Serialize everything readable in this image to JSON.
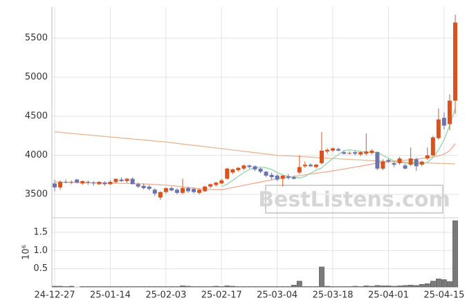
{
  "chart_data": [
    {
      "type": "candlestick",
      "x": [
        "24-12-27",
        null,
        null,
        null,
        null,
        null,
        null,
        null,
        null,
        null,
        "25-01-14",
        null,
        null,
        null,
        null,
        null,
        null,
        null,
        null,
        null,
        "25-02-03",
        null,
        null,
        null,
        null,
        null,
        null,
        null,
        null,
        null,
        "25-02-17",
        null,
        null,
        null,
        null,
        null,
        null,
        null,
        null,
        null,
        "25-03-04",
        null,
        null,
        null,
        null,
        null,
        null,
        null,
        null,
        null,
        "25-03-18",
        null,
        null,
        null,
        null,
        null,
        null,
        null,
        null,
        null,
        "25-04-01",
        null,
        null,
        null,
        null,
        null,
        null,
        null,
        null,
        null,
        "25-04-15",
        null,
        null
      ],
      "open": [
        3640,
        3590,
        3660,
        3650,
        3690,
        3640,
        3660,
        3650,
        3630,
        3650,
        3630,
        3660,
        3690,
        3670,
        3700,
        3630,
        3610,
        3600,
        3560,
        3460,
        3530,
        3580,
        3560,
        3520,
        3580,
        3570,
        3520,
        3540,
        3600,
        3620,
        3640,
        3700,
        3780,
        3810,
        3830,
        3870,
        3860,
        3830,
        3790,
        3750,
        3740,
        3700,
        3730,
        3720,
        3780,
        3860,
        3880,
        3850,
        3900,
        4050,
        4060,
        4080,
        4040,
        4030,
        4040,
        4010,
        4020,
        4030,
        4040,
        3830,
        3940,
        3900,
        3900,
        3870,
        3880,
        3950,
        3880,
        3960,
        4000,
        4220,
        4480,
        4400,
        4700
      ],
      "high": [
        3690,
        3680,
        3690,
        3680,
        3700,
        3680,
        3680,
        3670,
        3670,
        3670,
        3680,
        3700,
        3720,
        3710,
        3720,
        3650,
        3640,
        3620,
        3580,
        3540,
        3590,
        3600,
        3580,
        3700,
        3600,
        3590,
        3570,
        3610,
        3640,
        3660,
        3700,
        3840,
        3830,
        3850,
        3880,
        3880,
        3870,
        3840,
        3800,
        3780,
        3760,
        3750,
        3760,
        3740,
        4000,
        3920,
        3900,
        3890,
        4300,
        4090,
        4100,
        4100,
        4060,
        4050,
        4060,
        4050,
        4280,
        4080,
        4050,
        3950,
        3960,
        3920,
        3980,
        3890,
        4100,
        3970,
        3930,
        4100,
        4250,
        4600,
        4550,
        4780,
        5800
      ],
      "low": [
        3540,
        3560,
        3640,
        3630,
        3640,
        3620,
        3620,
        3610,
        3620,
        3610,
        3620,
        3640,
        3660,
        3650,
        3650,
        3580,
        3560,
        3550,
        3480,
        3430,
        3510,
        3540,
        3500,
        3500,
        3520,
        3510,
        3500,
        3530,
        3580,
        3600,
        3630,
        3690,
        3760,
        3790,
        3810,
        3830,
        3800,
        3770,
        3720,
        3690,
        3670,
        3600,
        3690,
        3690,
        3760,
        3840,
        3850,
        3830,
        3880,
        4020,
        4040,
        4050,
        4010,
        4010,
        4000,
        3990,
        4000,
        4010,
        3810,
        3810,
        3900,
        3850,
        3880,
        3820,
        3860,
        3800,
        3860,
        3940,
        3990,
        4200,
        4330,
        4320,
        4530
      ],
      "close": [
        3590,
        3660,
        3650,
        3660,
        3650,
        3670,
        3650,
        3640,
        3660,
        3630,
        3660,
        3700,
        3670,
        3700,
        3630,
        3600,
        3580,
        3570,
        3510,
        3530,
        3580,
        3550,
        3520,
        3580,
        3540,
        3530,
        3560,
        3600,
        3630,
        3650,
        3680,
        3830,
        3820,
        3840,
        3870,
        3850,
        3820,
        3790,
        3740,
        3720,
        3690,
        3740,
        3710,
        3700,
        3850,
        3880,
        3860,
        3880,
        4060,
        4070,
        4090,
        4060,
        4020,
        4030,
        4020,
        4040,
        4050,
        4060,
        3830,
        3920,
        3920,
        3880,
        3960,
        3830,
        3960,
        3860,
        3920,
        4000,
        4230,
        4460,
        4380,
        4700,
        5700
      ],
      "up_color": "#d9531e",
      "down_color": "#6b74ad",
      "lines": [
        {
          "color": "#e8b690",
          "values": [
            4300,
            4294,
            4287,
            4281,
            4274,
            4268,
            4261,
            4255,
            4248,
            4242,
            4235,
            4229,
            4222,
            4216,
            4209,
            4203,
            4196,
            4190,
            4183,
            4177,
            4170,
            4162,
            4153,
            4145,
            4136,
            4128,
            4119,
            4111,
            4102,
            4094,
            4085,
            4077,
            4068,
            4060,
            4051,
            4043,
            4034,
            4026,
            4017,
            4009,
            4000,
            3996,
            3992,
            3988,
            3984,
            3980,
            3976,
            3972,
            3968,
            3964,
            3960,
            3956,
            3952,
            3948,
            3944,
            3940,
            3936,
            3932,
            3928,
            3924,
            3920,
            3918,
            3915,
            3913,
            3910,
            3908,
            3905,
            3903,
            3900,
            3898,
            3895,
            3893,
            3890
          ]
        },
        {
          "color": "#f2a98f",
          "values": [
            3660,
            3658,
            3656,
            3654,
            3652,
            3650,
            3650,
            3650,
            3648,
            3646,
            3645,
            3644,
            3642,
            3640,
            3638,
            3636,
            3634,
            3630,
            3626,
            3622,
            3620,
            3612,
            3604,
            3596,
            3588,
            3580,
            3574,
            3568,
            3564,
            3562,
            3560,
            3574,
            3588,
            3602,
            3616,
            3630,
            3644,
            3658,
            3672,
            3686,
            3700,
            3710,
            3720,
            3730,
            3740,
            3750,
            3760,
            3770,
            3780,
            3790,
            3800,
            3812,
            3825,
            3837,
            3850,
            3862,
            3875,
            3887,
            3900,
            3910,
            3920,
            3926,
            3932,
            3938,
            3944,
            3950,
            3960,
            3970,
            3980,
            3995,
            4015,
            4060,
            4150
          ]
        },
        {
          "color": "#8fd6a8",
          "values": [
            null,
            null,
            null,
            null,
            null,
            null,
            null,
            null,
            null,
            null,
            null,
            null,
            null,
            null,
            null,
            null,
            null,
            null,
            null,
            null,
            null,
            null,
            null,
            null,
            null,
            null,
            null,
            null,
            null,
            null,
            3600,
            3630,
            3680,
            3730,
            3780,
            3820,
            3840,
            3850,
            3840,
            3820,
            3780,
            3750,
            3730,
            3720,
            3710,
            3730,
            3770,
            3810,
            3840,
            3900,
            3960,
            4010,
            4060,
            4070,
            4060,
            4050,
            4040,
            4035,
            4040,
            4000,
            3960,
            3930,
            3910,
            3900,
            3890,
            3900,
            3890,
            3910,
            3970,
            4070,
            4200,
            4380,
            4600
          ]
        }
      ],
      "ylim": [
        3200,
        5900
      ],
      "yticks": [
        3500,
        4000,
        4500,
        5000,
        5500
      ],
      "grid": true
    },
    {
      "type": "bar",
      "ylabel": "10⁶",
      "color": "#7a7a7a",
      "values": [
        0.02,
        0.02,
        0.01,
        0.02,
        0,
        0.01,
        0.01,
        0.01,
        0.01,
        0.01,
        0.01,
        0.01,
        0.01,
        0.01,
        0.01,
        0.01,
        0.01,
        0.01,
        0.01,
        0.01,
        0.01,
        0.01,
        0.01,
        0.03,
        0.02,
        0.01,
        0.01,
        0.01,
        0.01,
        0.02,
        0.01,
        0.03,
        0.02,
        0.01,
        0.01,
        0.01,
        0.01,
        0.01,
        0.01,
        0.01,
        0.01,
        0.01,
        0.01,
        0.05,
        0.16,
        0.01,
        0.01,
        0.01,
        0.55,
        0.02,
        0.01,
        0.01,
        0.01,
        0.01,
        0.02,
        0.01,
        0.03,
        0.02,
        0.04,
        0.03,
        0.03,
        0.02,
        0.03,
        0.04,
        0.05,
        0.04,
        0.07,
        0.09,
        0.16,
        0.22,
        0.2,
        0.15,
        1.82
      ],
      "ylim": [
        0,
        1.9
      ],
      "yticks": [
        0.5,
        {
          "value": 1,
          "label": "1.0"
        },
        1.5
      ],
      "grid": true
    }
  ],
  "watermark": "BestListens.com"
}
